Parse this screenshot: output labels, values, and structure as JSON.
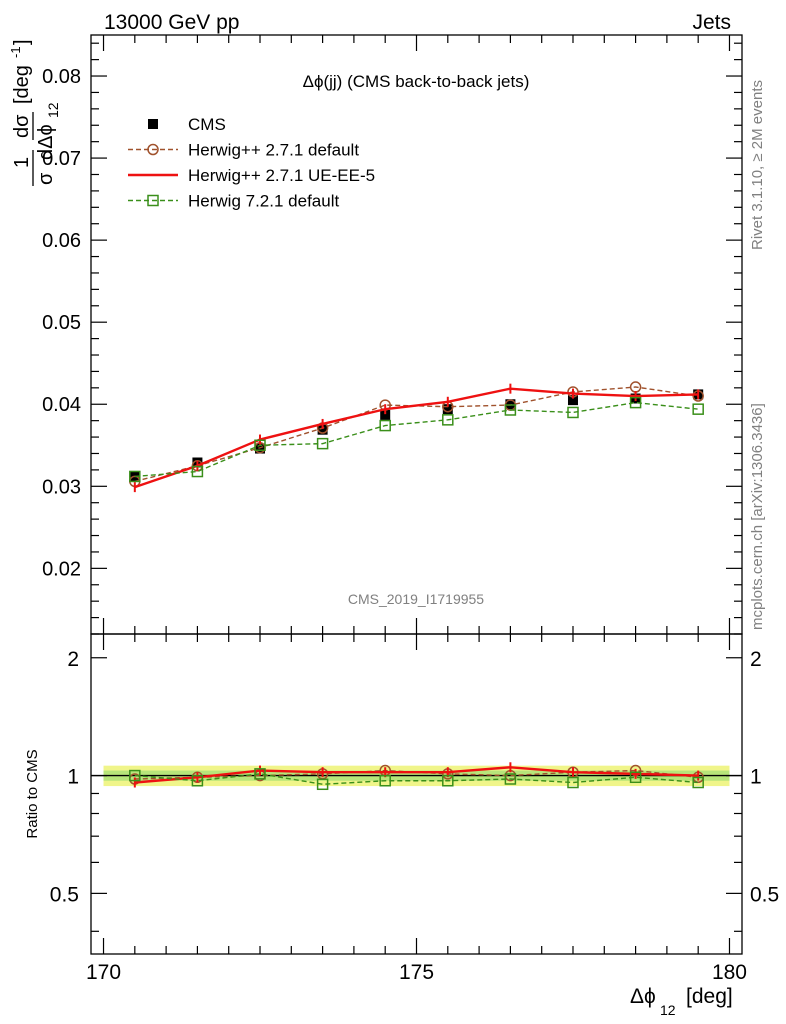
{
  "header": {
    "left": "13000 GeV pp",
    "right": "Jets"
  },
  "side": {
    "rivet": "Rivet 3.1.10, ≥ 2M events",
    "mcplots": "mcplots.cern.ch [arXiv:1306.3436]"
  },
  "watermark": "CMS_2019_I1719955",
  "chart_data": [
    {
      "type": "line",
      "title": "Δϕ(jj) (CMS back-to-back jets)",
      "ylabel": "1/σ dσ/dΔϕ_12 [deg^-1]",
      "ylim": [
        0.012,
        0.085
      ],
      "yticks": [
        0.02,
        0.03,
        0.04,
        0.05,
        0.06,
        0.07,
        0.08
      ],
      "ytick_labels": [
        "0.02",
        "0.03",
        "0.04",
        "0.05",
        "0.06",
        "0.07",
        "0.08"
      ],
      "xlim": [
        169.8,
        180.2
      ],
      "x": [
        170.5,
        171.5,
        172.5,
        173.5,
        174.5,
        175.5,
        176.5,
        177.5,
        178.5,
        179.5
      ],
      "legend_position": "top-left",
      "grid": false,
      "series": [
        {
          "name": "CMS",
          "color": "#000000",
          "marker": "square-filled",
          "values": [
            0.0312,
            0.0329,
            0.0346,
            0.0369,
            0.0387,
            0.0394,
            0.04,
            0.0405,
            0.0407,
            0.0412
          ]
        },
        {
          "name": "Herwig++ 2.7.1 default",
          "color": "#a0522d",
          "marker": "circle-open",
          "dash": true,
          "values": [
            0.0306,
            0.0325,
            0.0347,
            0.0371,
            0.0399,
            0.0397,
            0.0399,
            0.0415,
            0.0421,
            0.041
          ]
        },
        {
          "name": "Herwig++ 2.7.1 UE-EE-5",
          "color": "#ee1111",
          "marker": "none",
          "dash": false,
          "values": [
            0.0299,
            0.0325,
            0.0357,
            0.0376,
            0.0394,
            0.0403,
            0.0419,
            0.0413,
            0.041,
            0.0412
          ]
        },
        {
          "name": "Herwig 7.2.1 default",
          "color": "#3a8f1a",
          "marker": "square-open",
          "dash": true,
          "values": [
            0.0312,
            0.0318,
            0.035,
            0.0352,
            0.0374,
            0.0381,
            0.0393,
            0.039,
            0.0402,
            0.0394
          ]
        }
      ]
    },
    {
      "type": "line",
      "ylabel": "Ratio to CMS",
      "xlabel": "Δϕ_12 [deg]",
      "ylim": [
        0.35,
        2.3
      ],
      "yticks": [
        0.5,
        1,
        2
      ],
      "ytick_labels": [
        "0.5",
        "1",
        "2"
      ],
      "xlim": [
        169.8,
        180.2
      ],
      "xticks": [
        170,
        175,
        180
      ],
      "xtick_labels": [
        "170",
        "175",
        "180"
      ],
      "x": [
        170.5,
        171.5,
        172.5,
        173.5,
        174.5,
        175.5,
        176.5,
        177.5,
        178.5,
        179.5
      ],
      "uncertainty_band": {
        "inner": 0.03,
        "outer": 0.06
      },
      "series": [
        {
          "name": "Herwig++ 2.7.1 default",
          "color": "#a0522d",
          "marker": "circle-open",
          "dash": true,
          "values": [
            0.98,
            0.99,
            1.0,
            1.01,
            1.03,
            1.01,
            1.0,
            1.02,
            1.03,
            0.99
          ]
        },
        {
          "name": "Herwig++ 2.7.1 UE-EE-5",
          "color": "#ee1111",
          "marker": "none",
          "dash": false,
          "values": [
            0.96,
            0.99,
            1.03,
            1.02,
            1.02,
            1.02,
            1.05,
            1.02,
            1.01,
            1.0
          ]
        },
        {
          "name": "Herwig 7.2.1 default",
          "color": "#3a8f1a",
          "marker": "square-open",
          "dash": true,
          "values": [
            1.0,
            0.97,
            1.01,
            0.95,
            0.97,
            0.97,
            0.98,
            0.96,
            0.99,
            0.96
          ]
        }
      ]
    }
  ]
}
